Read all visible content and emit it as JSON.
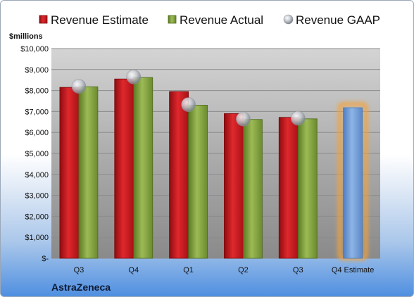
{
  "chart_data": {
    "type": "bar",
    "ylabel": "$millions",
    "company": "AstraZeneca",
    "categories": [
      "Q3",
      "Q4",
      "Q1",
      "Q2",
      "Q3",
      "Q4 Estimate"
    ],
    "series": [
      {
        "name": "Revenue Estimate",
        "color": "#c0161c",
        "values": [
          8150,
          8550,
          7950,
          6900,
          6720,
          null
        ]
      },
      {
        "name": "Revenue Actual",
        "color": "#7f9f3a",
        "values": [
          8180,
          8620,
          7300,
          6620,
          6650,
          null
        ]
      },
      {
        "name": "Revenue GAAP",
        "color": "#b8bcc4",
        "values": [
          8200,
          8650,
          7330,
          6640,
          6680,
          null
        ]
      }
    ],
    "forecast": {
      "category": "Q4 Estimate",
      "value": 7180,
      "color": "#6d9bd6",
      "glow": "#f3a33c"
    },
    "ylim": [
      0,
      10000
    ],
    "yticks": [
      0,
      1000,
      2000,
      3000,
      4000,
      5000,
      6000,
      7000,
      8000,
      9000,
      10000
    ],
    "ytick_labels": [
      "$-",
      "$1,000",
      "$2,000",
      "$3,000",
      "$4,000",
      "$5,000",
      "$6,000",
      "$7,000",
      "$8,000",
      "$9,000",
      "$10,000"
    ],
    "legend_position": "top",
    "grid": true
  }
}
